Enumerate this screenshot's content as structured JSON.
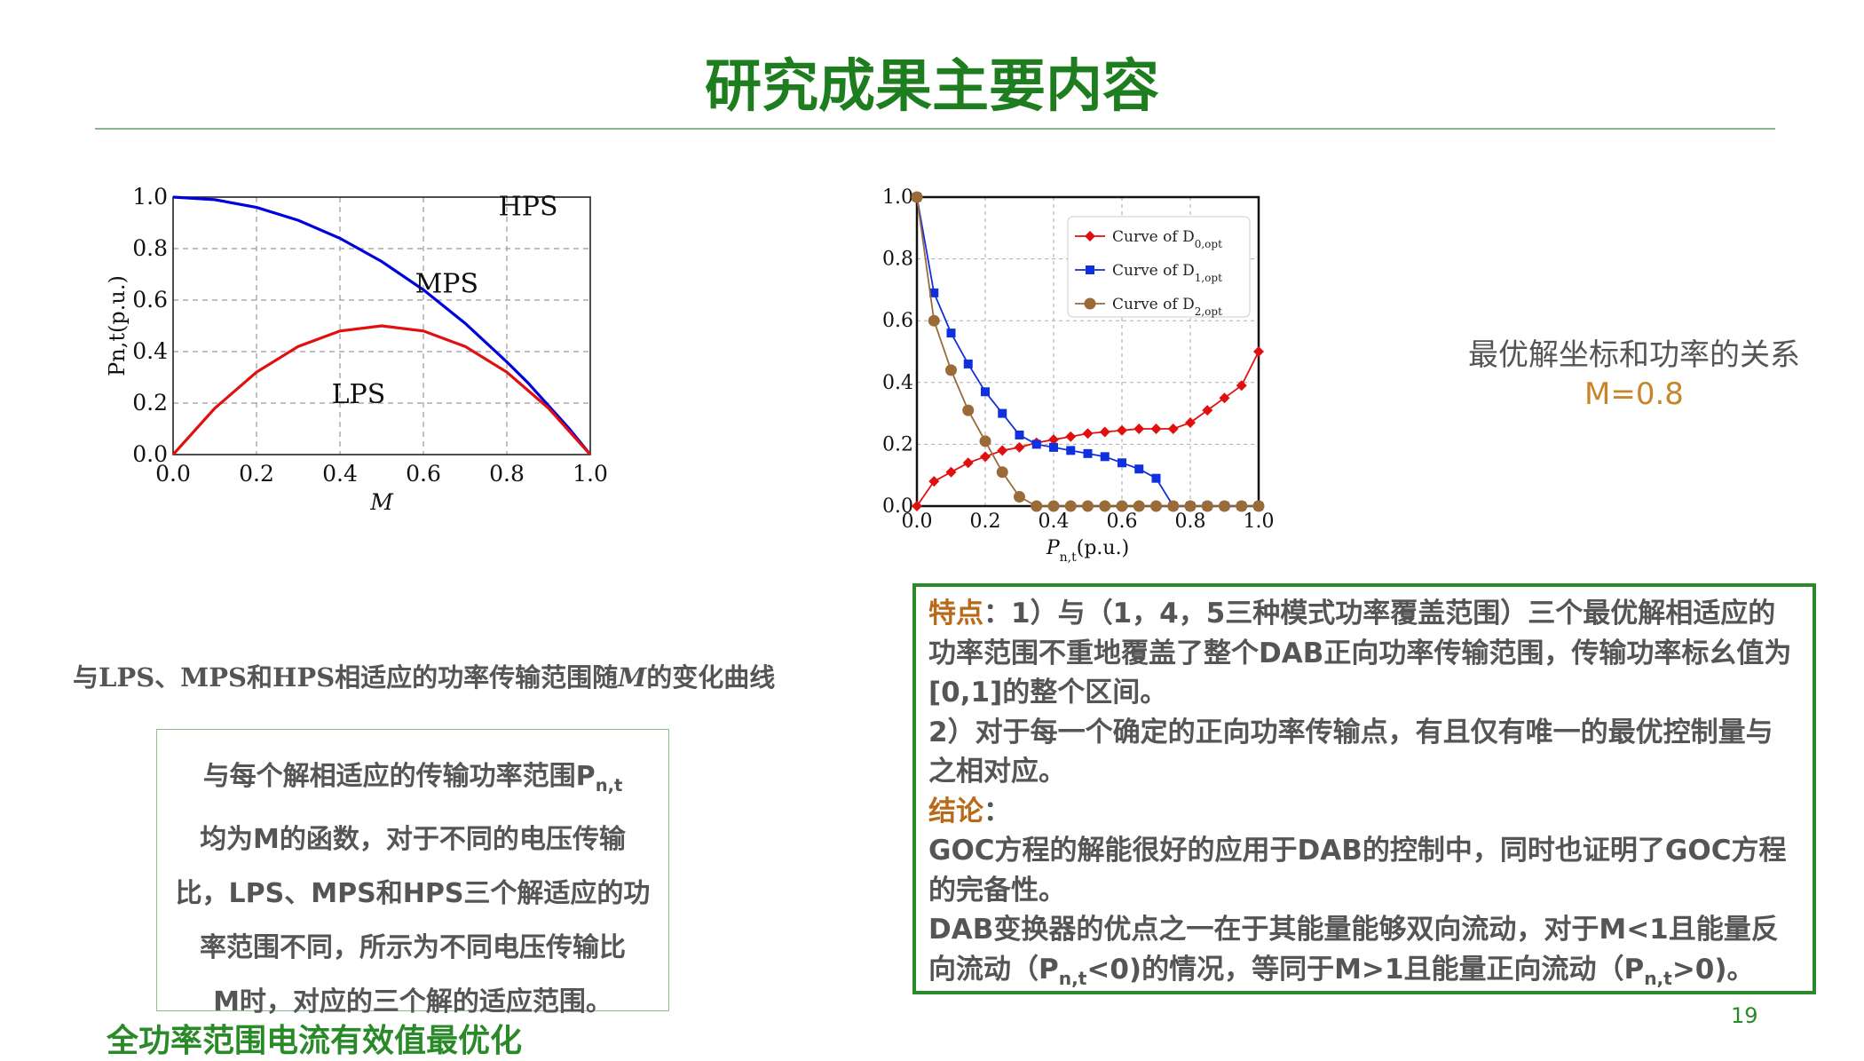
{
  "slide": {
    "title": "研究成果主要内容",
    "page_number": "19"
  },
  "left_chart": {
    "caption": "与LPS、MPS和HPS相适应的功率传输范围随M的变化曲线",
    "caption_parts": [
      "与LPS、MPS和HPS相适应的功率传输范围随",
      "M",
      "的变化曲线"
    ],
    "region_labels": [
      "HPS",
      "MPS",
      "LPS"
    ]
  },
  "left_box": {
    "lines": [
      "与每个解相适应的传输功率范围P",
      "均为M的函数，对于不同的电压传输",
      "比，LPS、MPS和HPS三个解适应的功",
      "率范围不同，所示为不同电压传输比",
      "M时，对应的三个解的适应范围。"
    ],
    "subscript": "n,t"
  },
  "bottom_title": "全功率范围电流有效值最优化",
  "right_note": {
    "line1": "最优解坐标和功率的关系",
    "line2": "M=0.8"
  },
  "right_box": {
    "feature_label": "特点",
    "feature_text_1": "：1）与（1，4，5三种模式功率覆盖范围）三个最优解相适应的功率范围不重地覆盖了整个DAB正向功率传输范围，传输功率标幺值为[0,1]的整个区间。",
    "feature_text_2": "2）对于每一个确定的正向功率传输点，有且仅有唯一的最优控制量与之相对应。",
    "conclusion_label": "结论",
    "conclusion_colon": "：",
    "conclusion_text_1": "GOC方程的解能很好的应用于DAB的控制中，同时也证明了GOC方程的完备性。",
    "conclusion_text_2a": "DAB变换器的优点之一在于其能量能够双向流动，对于M<1且能量反向流动（P",
    "conclusion_text_2b": "<0)的情况，等同于M>1且能量正向流动（P",
    "conclusion_text_2c": ">0)。",
    "subscript": "n,t"
  },
  "chart_data": [
    {
      "type": "line",
      "title": "",
      "xlabel": "M",
      "ylabel": "Pn,t(p.u.)",
      "xlim": [
        0,
        1
      ],
      "ylim": [
        0,
        1
      ],
      "xticks": [
        "0.0",
        "0.2",
        "0.4",
        "0.6",
        "0.8",
        "1.0"
      ],
      "yticks": [
        "0.0",
        "0.2",
        "0.4",
        "0.6",
        "0.8",
        "1.0"
      ],
      "grid": true,
      "series": [
        {
          "color": "#0000dd",
          "x": [
            0,
            0.1,
            0.2,
            0.3,
            0.4,
            0.5,
            0.6,
            0.7,
            0.8,
            0.85,
            0.9,
            0.95,
            0.98,
            1.0
          ],
          "values": [
            1.0,
            0.99,
            0.96,
            0.91,
            0.84,
            0.75,
            0.64,
            0.51,
            0.36,
            0.28,
            0.19,
            0.1,
            0.04,
            0.0
          ]
        },
        {
          "color": "#e01010",
          "x": [
            0,
            0.1,
            0.2,
            0.3,
            0.4,
            0.5,
            0.6,
            0.7,
            0.8,
            0.9,
            1.0
          ],
          "values": [
            0,
            0.18,
            0.32,
            0.42,
            0.48,
            0.5,
            0.48,
            0.42,
            0.32,
            0.18,
            0
          ]
        }
      ]
    },
    {
      "type": "line",
      "title": "",
      "xlabel": "Pn,t(p.u.)",
      "ylabel": "",
      "xlim": [
        0,
        1
      ],
      "ylim": [
        0,
        1
      ],
      "xticks": [
        "0.0",
        "0.2",
        "0.4",
        "0.6",
        "0.8",
        "1.0"
      ],
      "yticks": [
        "0.0",
        "0.2",
        "0.4",
        "0.6",
        "0.8",
        "1.0"
      ],
      "grid": true,
      "legend": "top-right",
      "series": [
        {
          "name": "Curve of D0,opt",
          "name_main": "Curve of D",
          "name_sub": "0,opt",
          "color": "#e01010",
          "marker": "diamond",
          "x": [
            0,
            0.05,
            0.1,
            0.15,
            0.2,
            0.25,
            0.3,
            0.35,
            0.4,
            0.45,
            0.5,
            0.55,
            0.6,
            0.65,
            0.7,
            0.75,
            0.8,
            0.85,
            0.9,
            0.95,
            1.0
          ],
          "values": [
            0,
            0.08,
            0.11,
            0.14,
            0.16,
            0.18,
            0.19,
            0.205,
            0.215,
            0.225,
            0.235,
            0.24,
            0.245,
            0.25,
            0.25,
            0.25,
            0.27,
            0.31,
            0.35,
            0.39,
            0.5
          ]
        },
        {
          "name": "Curve of D1,opt",
          "name_main": "Curve of D",
          "name_sub": "1,opt",
          "color": "#1030e0",
          "marker": "square",
          "x": [
            0,
            0.05,
            0.1,
            0.15,
            0.2,
            0.25,
            0.3,
            0.35,
            0.4,
            0.45,
            0.5,
            0.55,
            0.6,
            0.65,
            0.7,
            0.75,
            0.8,
            0.85,
            0.9,
            0.95,
            1.0
          ],
          "values": [
            1.0,
            0.69,
            0.56,
            0.46,
            0.37,
            0.3,
            0.23,
            0.2,
            0.19,
            0.18,
            0.17,
            0.16,
            0.14,
            0.12,
            0.09,
            0,
            0,
            0,
            0,
            0,
            0
          ]
        },
        {
          "name": "Curve of D2,opt",
          "name_main": "Curve of D",
          "name_sub": "2,opt",
          "color": "#9a6a38",
          "marker": "circle",
          "x": [
            0,
            0.05,
            0.1,
            0.15,
            0.2,
            0.25,
            0.3,
            0.35,
            0.4,
            0.45,
            0.5,
            0.55,
            0.6,
            0.65,
            0.7,
            0.75,
            0.8,
            0.85,
            0.9,
            0.95,
            1.0
          ],
          "values": [
            1.0,
            0.6,
            0.44,
            0.31,
            0.21,
            0.11,
            0.03,
            0,
            0,
            0,
            0,
            0,
            0,
            0,
            0,
            0,
            0,
            0,
            0,
            0,
            0
          ]
        }
      ]
    }
  ]
}
